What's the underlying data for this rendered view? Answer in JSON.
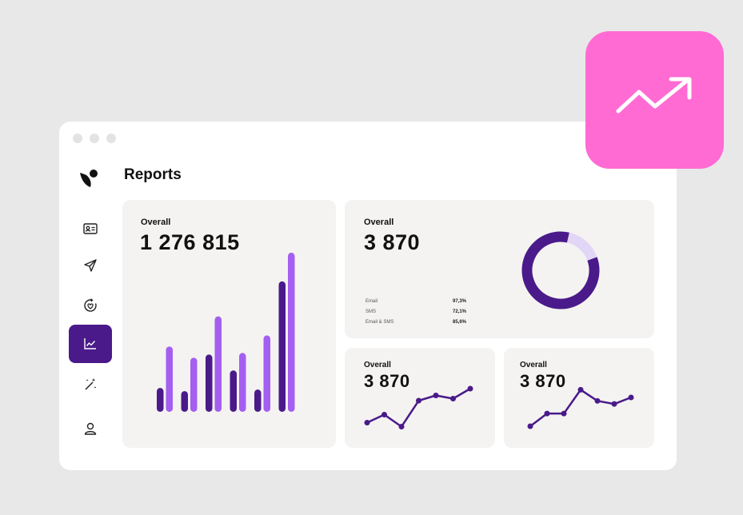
{
  "page": {
    "title": "Reports"
  },
  "sidebar": {
    "items": [
      {
        "icon": "contact-card-icon",
        "active": false
      },
      {
        "icon": "paper-plane-icon",
        "active": false
      },
      {
        "icon": "heart-refresh-icon",
        "active": false
      },
      {
        "icon": "line-chart-icon",
        "active": true
      },
      {
        "icon": "magic-wand-icon",
        "active": false
      },
      {
        "icon": "user-icon",
        "active": false
      }
    ]
  },
  "colors": {
    "accent_dark": "#4a1a8a",
    "accent_light": "#a45ef0",
    "donut_track": "#e2d6f7",
    "badge": "#ff6bd3",
    "card_bg": "#f4f3f1"
  },
  "cards": {
    "main": {
      "label": "Overall",
      "value": "1 276 815"
    },
    "donut": {
      "label": "Overall",
      "value": "3 870",
      "stats": [
        {
          "name": "Email",
          "value": "97,3%"
        },
        {
          "name": "SMS",
          "value": "72,1%"
        },
        {
          "name": "Email & SMS",
          "value": "85,6%"
        }
      ]
    },
    "small_left": {
      "label": "Overall",
      "value": "3 870"
    },
    "small_right": {
      "label": "Overall",
      "value": "3 870"
    }
  },
  "chart_data": [
    {
      "type": "bar",
      "series": [
        {
          "values": [
            0.15,
            0.13,
            0.36,
            0.26,
            0.14,
            0.82
          ]
        },
        {
          "values": [
            0.41,
            0.34,
            0.6,
            0.37,
            0.48,
            1.0
          ]
        }
      ]
    },
    {
      "type": "pie",
      "values": [
        0.84,
        0.16
      ]
    },
    {
      "type": "line",
      "values": [
        0.15,
        0.35,
        0.05,
        0.7,
        0.83,
        0.75,
        1.0
      ]
    },
    {
      "type": "line",
      "values": [
        0.0,
        0.33,
        0.33,
        0.95,
        0.66,
        0.58,
        0.75
      ]
    }
  ]
}
